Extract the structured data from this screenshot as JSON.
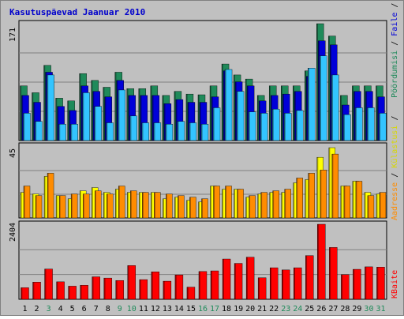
{
  "chart_data": [
    {
      "type": "bar",
      "title": "Kasutuspäevad Jaanuar 2010",
      "y_max_label": "171",
      "ylim": [
        0,
        171
      ],
      "categories": [
        "1",
        "2",
        "3",
        "4",
        "5",
        "6",
        "7",
        "8",
        "9",
        "10",
        "11",
        "12",
        "13",
        "14",
        "15",
        "16",
        "17",
        "18",
        "19",
        "20",
        "21",
        "22",
        "23",
        "24",
        "25",
        "26",
        "27",
        "28",
        "29",
        "30",
        "31"
      ],
      "weekend_days": [
        "3",
        "9",
        "10",
        "16",
        "17",
        "23",
        "24",
        "30",
        "31"
      ],
      "right_labels": [
        "Pöördumisi",
        "Faile",
        "Lehekülgi"
      ],
      "series": [
        {
          "name": "Pöördumisi",
          "color": "#1f8a5a",
          "values": [
            80,
            70,
            110,
            62,
            58,
            98,
            88,
            78,
            100,
            76,
            76,
            80,
            66,
            72,
            68,
            67,
            80,
            112,
            96,
            90,
            66,
            80,
            80,
            80,
            102,
            171,
            153,
            66,
            80,
            80,
            80
          ]
        },
        {
          "name": "Faile",
          "color": "#0000d8",
          "values": [
            66,
            56,
            100,
            50,
            44,
            80,
            72,
            64,
            88,
            66,
            66,
            66,
            54,
            60,
            56,
            56,
            64,
            102,
            86,
            80,
            58,
            66,
            68,
            72,
            94,
            146,
            140,
            52,
            72,
            72,
            64
          ]
        },
        {
          "name": "Lehekülgi",
          "color": "#33c4ff",
          "values": [
            40,
            28,
            96,
            24,
            24,
            70,
            50,
            26,
            74,
            36,
            26,
            26,
            24,
            28,
            26,
            24,
            48,
            104,
            72,
            42,
            40,
            46,
            40,
            44,
            106,
            124,
            96,
            38,
            48,
            48,
            40
          ]
        }
      ]
    },
    {
      "type": "bar",
      "y_max_label": "45",
      "ylim": [
        0,
        45
      ],
      "right_labels": [
        "Külastusi",
        "Aadresse"
      ],
      "series": [
        {
          "name": "Külastusi",
          "color": "#ffff00",
          "values": [
            16,
            15,
            26,
            14,
            12,
            17,
            19,
            16,
            18,
            16,
            16,
            16,
            12,
            13,
            11,
            10,
            20,
            18,
            18,
            13,
            15,
            16,
            16,
            22,
            24,
            38,
            44,
            20,
            23,
            16,
            15
          ]
        },
        {
          "name": "Aadresse",
          "color": "#ff8c00",
          "values": [
            20,
            14,
            28,
            14,
            15,
            15,
            17,
            15,
            20,
            17,
            16,
            16,
            15,
            14,
            13,
            12,
            20,
            20,
            18,
            14,
            16,
            17,
            18,
            25,
            28,
            30,
            40,
            20,
            23,
            14,
            16
          ]
        }
      ]
    },
    {
      "type": "bar",
      "y_max_label": "2404",
      "ylim": [
        0,
        2404
      ],
      "right_labels": [
        "KBaite"
      ],
      "series": [
        {
          "name": "KBaite",
          "color": "#ff0000",
          "values": [
            370,
            550,
            970,
            560,
            420,
            450,
            720,
            680,
            600,
            1080,
            630,
            880,
            580,
            780,
            390,
            890,
            910,
            1290,
            1150,
            1350,
            690,
            1010,
            940,
            1010,
            1400,
            2404,
            1660,
            790,
            960,
            1040,
            1030
          ]
        }
      ]
    }
  ]
}
